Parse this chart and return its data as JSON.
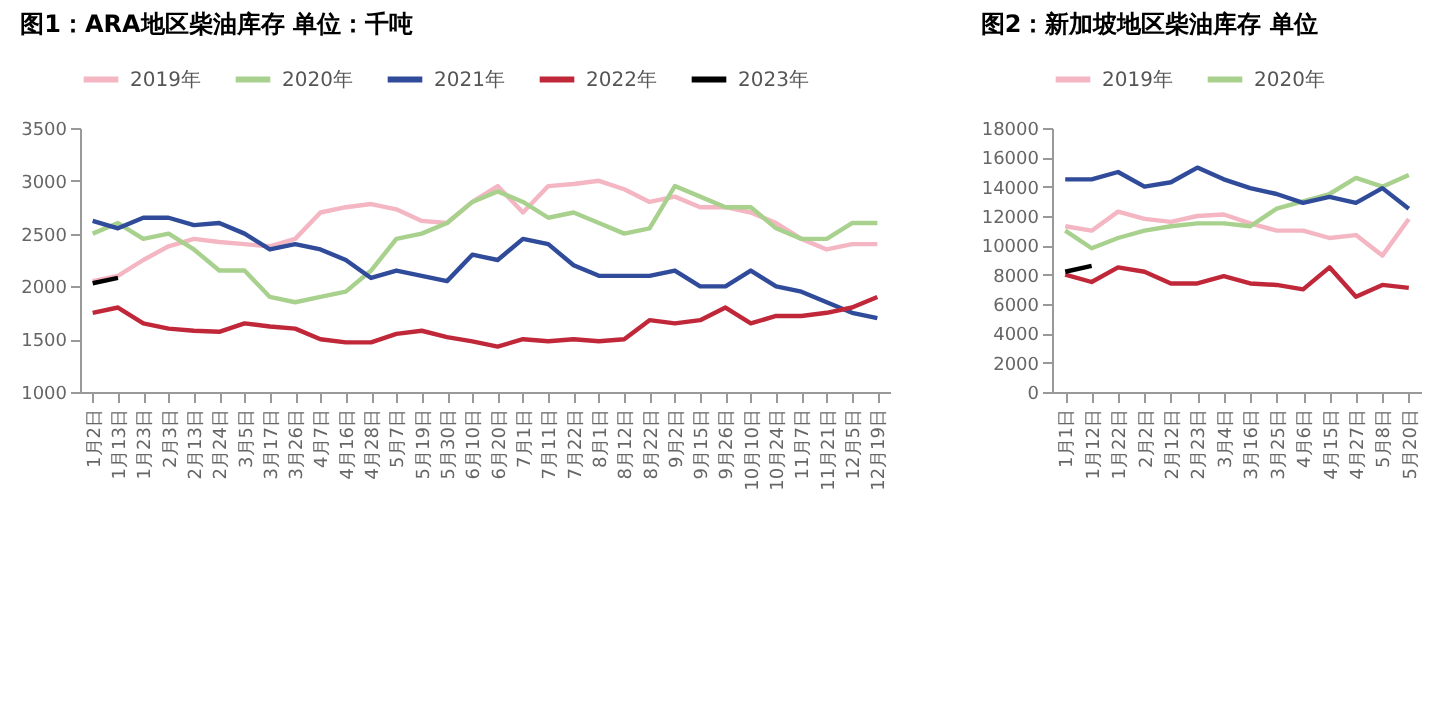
{
  "chart_data": [
    {
      "type": "line",
      "title": "图1：ARA地区柴油库存  单位：千吨",
      "legend": "top",
      "grid": false,
      "categories": [
        "1月2日",
        "1月13日",
        "1月23日",
        "2月3日",
        "2月13日",
        "2月24日",
        "3月5日",
        "3月17日",
        "3月26日",
        "4月7日",
        "4月16日",
        "4月28日",
        "5月7日",
        "5月19日",
        "5月30日",
        "6月10日",
        "6月20日",
        "7月1日",
        "7月11日",
        "7月22日",
        "8月1日",
        "8月12日",
        "8月22日",
        "9月2日",
        "9月15日",
        "9月26日",
        "10月10日",
        "10月24日",
        "11月7日",
        "11月21日",
        "12月5日",
        "12月19日"
      ],
      "ylim": [
        1000,
        3500
      ],
      "yticks": [
        1000,
        1500,
        2000,
        2500,
        3000,
        3500
      ],
      "series": [
        {
          "name": "2019年",
          "color": "#f4b6c2",
          "values": [
            2050,
            2100,
            2250,
            2380,
            2450,
            2420,
            2400,
            2380,
            2450,
            2700,
            2750,
            2780,
            2730,
            2620,
            2600,
            2800,
            2950,
            2700,
            2950,
            2970,
            3000,
            2920,
            2800,
            2850,
            2750,
            2750,
            2700,
            2600,
            2450,
            2350,
            2400,
            2400
          ]
        },
        {
          "name": "2020年",
          "color": "#a9d18e",
          "values": [
            2500,
            2600,
            2450,
            2500,
            2350,
            2150,
            2150,
            1900,
            1850,
            1900,
            1950,
            2150,
            2450,
            2500,
            2600,
            2800,
            2900,
            2800,
            2650,
            2700,
            2600,
            2500,
            2550,
            2950,
            2850,
            2750,
            2750,
            2550,
            2450,
            2450,
            2600,
            2600
          ]
        },
        {
          "name": "2021年",
          "color": "#2f4b9a",
          "values": [
            2620,
            2550,
            2650,
            2650,
            2580,
            2600,
            2500,
            2350,
            2400,
            2350,
            2250,
            2080,
            2150,
            2100,
            2050,
            2300,
            2250,
            2450,
            2400,
            2200,
            2100,
            2100,
            2100,
            2150,
            2000,
            2000,
            2150,
            2000,
            1950,
            1850,
            1750,
            1700
          ]
        },
        {
          "name": "2022年",
          "color": "#c0283a",
          "values": [
            1750,
            1800,
            1650,
            1600,
            1580,
            1570,
            1650,
            1620,
            1600,
            1500,
            1470,
            1470,
            1550,
            1580,
            1520,
            1480,
            1430,
            1500,
            1480,
            1500,
            1480,
            1500,
            1680,
            1650,
            1680,
            1800,
            1650,
            1720,
            1720,
            1750,
            1800,
            1900
          ]
        },
        {
          "name": "2023年",
          "color": "#000000",
          "values": [
            2030,
            2080,
            null,
            null,
            null,
            null,
            null,
            null,
            null,
            null,
            null,
            null,
            null,
            null,
            null,
            null,
            null,
            null,
            null,
            null,
            null,
            null,
            null,
            null,
            null,
            null,
            null,
            null,
            null,
            null,
            null,
            null
          ]
        }
      ]
    },
    {
      "type": "line",
      "title": "图2：新加坡地区柴油库存  单位",
      "legend": "top",
      "grid": false,
      "categories": [
        "1月1日",
        "1月12日",
        "1月22日",
        "2月2日",
        "2月12日",
        "2月23日",
        "3月4日",
        "3月16日",
        "3月25日",
        "4月6日",
        "4月15日",
        "4月27日",
        "5月8日",
        "5月20日"
      ],
      "ylim": [
        0,
        18000
      ],
      "yticks": [
        0,
        2000,
        4000,
        6000,
        8000,
        10000,
        12000,
        14000,
        16000,
        18000
      ],
      "series": [
        {
          "name": "2019年",
          "color": "#f4b6c2",
          "values": [
            11300,
            11000,
            12300,
            11800,
            11600,
            12000,
            12100,
            11500,
            11000,
            11000,
            10500,
            10700,
            9300,
            11800
          ]
        },
        {
          "name": "2020年",
          "color": "#a9d18e",
          "values": [
            11000,
            9800,
            10500,
            11000,
            11300,
            11500,
            11500,
            11300,
            12500,
            13000,
            13500,
            14600,
            14000,
            14800
          ]
        },
        {
          "color": "#2f4b9a",
          "values": [
            14500,
            14500,
            15000,
            14000,
            14300,
            15300,
            14500,
            13900,
            13500,
            12900,
            13300,
            12900,
            13900,
            12500
          ]
        },
        {
          "color": "#c0283a",
          "values": [
            8000,
            7500,
            8500,
            8200,
            7400,
            7400,
            7900,
            7400,
            7300,
            7000,
            8500,
            6500,
            7300,
            7100
          ]
        },
        {
          "color": "#000000",
          "values": [
            8200,
            8600,
            null,
            null,
            null,
            null,
            null,
            null,
            null,
            null,
            null,
            null,
            null,
            null
          ]
        }
      ]
    }
  ]
}
